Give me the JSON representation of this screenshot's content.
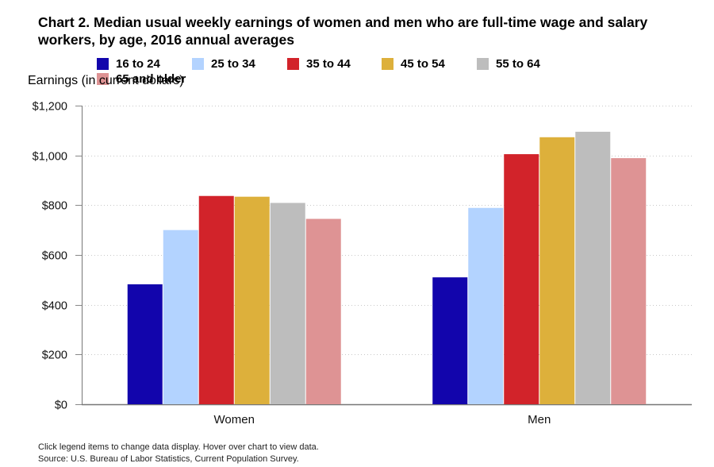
{
  "chart_data": {
    "type": "bar",
    "title": "Chart 2. Median usual weekly earnings of women and men who are full-time wage and salary workers, by age, 2016 annual averages",
    "xlabel": "",
    "ylabel": "Earnings (in current dollars)",
    "categories": [
      "Women",
      "Men"
    ],
    "series": [
      {
        "name": "16 to 24",
        "color": "#1205ac",
        "values": [
          482,
          510
        ]
      },
      {
        "name": "25 to 34",
        "color": "#b3d3ff",
        "values": [
          700,
          789
        ]
      },
      {
        "name": "35 to 44",
        "color": "#d2232a",
        "values": [
          837,
          1005
        ]
      },
      {
        "name": "45 to 54",
        "color": "#ddb03b",
        "values": [
          834,
          1073
        ]
      },
      {
        "name": "55 to 64",
        "color": "#bdbdbd",
        "values": [
          809,
          1095
        ]
      },
      {
        "name": "65 and older",
        "color": "#de9394",
        "values": [
          745,
          989
        ]
      }
    ],
    "ylim": [
      0,
      1200
    ],
    "yticks": [
      0,
      200,
      400,
      600,
      800,
      1000,
      1200
    ],
    "ytick_labels": [
      "$0",
      "$200",
      "$400",
      "$600",
      "$800",
      "$1,000",
      "$1,200"
    ],
    "grid": true,
    "legend_position": "top"
  },
  "footnotes": {
    "note": "Click legend items to change data display. Hover over chart to view data.",
    "source": "Source: U.S. Bureau of Labor Statistics, Current Population Survey."
  }
}
